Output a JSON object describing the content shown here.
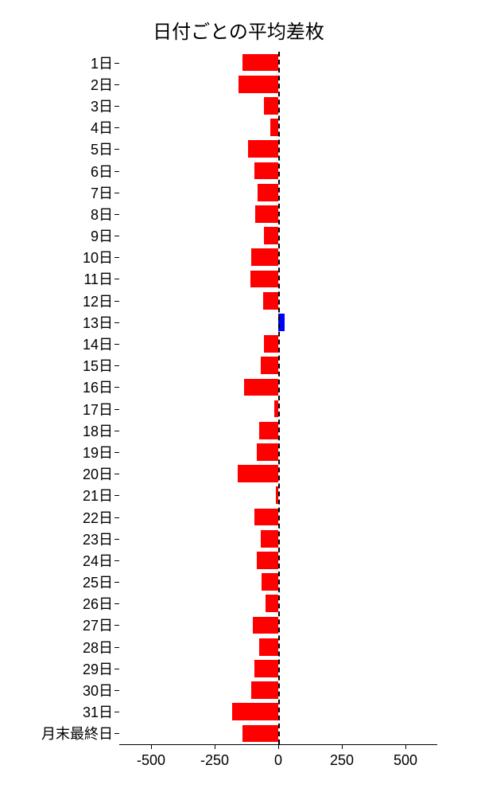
{
  "chart": {
    "type": "bar-horizontal",
    "title": "日付ごとの平均差枚",
    "title_fontsize": 24,
    "background_color": "#ffffff",
    "text_color": "#000000",
    "negative_color": "#ff0000",
    "positive_color": "#0000ff",
    "zero_line_color": "#000000",
    "zero_line_style": "dashed",
    "x_axis": {
      "min": -625,
      "max": 625,
      "ticks": [
        -500,
        -250,
        0,
        250,
        500
      ],
      "tick_labels": [
        "-500",
        "-250",
        "0",
        "250",
        "500"
      ],
      "label_fontsize": 18
    },
    "y_axis": {
      "label_fontsize": 18
    },
    "bar_fill_ratio": 0.8,
    "categories": [
      "1日",
      "2日",
      "3日",
      "4日",
      "5日",
      "6日",
      "7日",
      "8日",
      "9日",
      "10日",
      "11日",
      "12日",
      "13日",
      "14日",
      "15日",
      "16日",
      "17日",
      "18日",
      "19日",
      "20日",
      "21日",
      "22日",
      "23日",
      "24日",
      "25日",
      "26日",
      "27日",
      "28日",
      "29日",
      "30日",
      "31日",
      "月末最終日"
    ],
    "values": [
      -140,
      -155,
      -55,
      -30,
      -120,
      -95,
      -80,
      -90,
      -55,
      -105,
      -110,
      -60,
      25,
      -55,
      -70,
      -135,
      -15,
      -75,
      -85,
      -160,
      -8,
      -95,
      -70,
      -85,
      -65,
      -50,
      -100,
      -75,
      -95,
      -105,
      -180,
      -140
    ]
  }
}
